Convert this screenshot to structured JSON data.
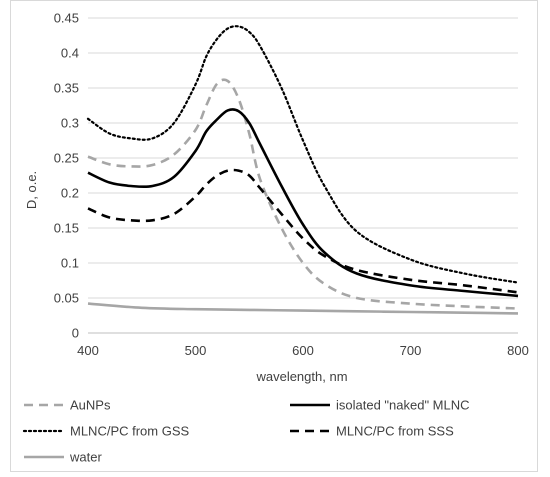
{
  "chart_data": {
    "type": "line",
    "title": "",
    "xlabel": "wavelength, nm",
    "ylabel": "D, o.e.",
    "xlim": [
      400,
      800
    ],
    "ylim": [
      0,
      0.45
    ],
    "x_ticks": [
      "400",
      "500",
      "600",
      "700",
      "800"
    ],
    "y_ticks": [
      "0",
      "0.05",
      "0.1",
      "0.15",
      "0.2",
      "0.25",
      "0.3",
      "0.35",
      "0.4",
      "0.45"
    ],
    "grid": "horizontal",
    "legend_position": "bottom",
    "series": [
      {
        "name": "AuNPs",
        "style": "dashed",
        "color": "#a6a6a6",
        "x": [
          400,
          420,
          440,
          460,
          480,
          500,
          510,
          520,
          530,
          540,
          550,
          560,
          580,
          600,
          620,
          650,
          700,
          750,
          800
        ],
        "y": [
          0.252,
          0.241,
          0.238,
          0.24,
          0.255,
          0.29,
          0.325,
          0.356,
          0.36,
          0.335,
          0.285,
          0.22,
          0.15,
          0.1,
          0.07,
          0.05,
          0.042,
          0.038,
          0.035
        ]
      },
      {
        "name": "isolated \"naked\" MLNC",
        "style": "solid",
        "color": "#000000",
        "x": [
          400,
          420,
          440,
          460,
          480,
          500,
          510,
          520,
          530,
          540,
          550,
          560,
          580,
          600,
          620,
          650,
          700,
          750,
          800
        ],
        "y": [
          0.229,
          0.215,
          0.21,
          0.21,
          0.223,
          0.26,
          0.288,
          0.305,
          0.318,
          0.317,
          0.3,
          0.27,
          0.21,
          0.155,
          0.115,
          0.085,
          0.068,
          0.06,
          0.053
        ]
      },
      {
        "name": "MLNC/PC from GSS",
        "style": "dotted",
        "color": "#000000",
        "x": [
          400,
          420,
          440,
          460,
          480,
          500,
          510,
          520,
          530,
          540,
          550,
          560,
          580,
          600,
          620,
          650,
          700,
          750,
          800
        ],
        "y": [
          0.306,
          0.285,
          0.278,
          0.278,
          0.3,
          0.355,
          0.395,
          0.42,
          0.435,
          0.438,
          0.43,
          0.41,
          0.35,
          0.275,
          0.21,
          0.145,
          0.105,
          0.085,
          0.072
        ]
      },
      {
        "name": "MLNC/PC from SSS",
        "style": "dashed",
        "color": "#000000",
        "x": [
          400,
          420,
          440,
          460,
          480,
          500,
          510,
          520,
          530,
          540,
          550,
          560,
          580,
          600,
          620,
          650,
          700,
          750,
          800
        ],
        "y": [
          0.178,
          0.165,
          0.161,
          0.161,
          0.17,
          0.195,
          0.212,
          0.225,
          0.232,
          0.232,
          0.225,
          0.207,
          0.17,
          0.135,
          0.11,
          0.09,
          0.076,
          0.068,
          0.058
        ]
      },
      {
        "name": "water",
        "style": "solid",
        "color": "#a6a6a6",
        "x": [
          400,
          450,
          500,
          550,
          600,
          650,
          700,
          750,
          800
        ],
        "y": [
          0.042,
          0.036,
          0.034,
          0.033,
          0.032,
          0.031,
          0.03,
          0.029,
          0.028
        ]
      }
    ]
  }
}
